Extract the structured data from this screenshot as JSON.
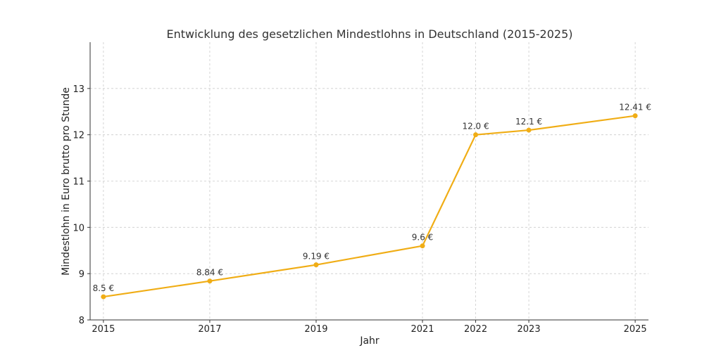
{
  "chart_data": {
    "type": "line",
    "title": "Entwicklung des gesetzlichen Mindestlohns in Deutschland (2015-2025)",
    "xlabel": "Jahr",
    "ylabel": "Mindestlohn in Euro brutto pro Stunde",
    "x": [
      2015,
      2017,
      2019,
      2021,
      2022,
      2023,
      2025
    ],
    "series": [
      {
        "values": [
          8.5,
          8.84,
          9.19,
          9.6,
          12.0,
          12.1,
          12.41
        ],
        "labels": [
          "8.5 €",
          "8.84 €",
          "9.19 €",
          "9.6 €",
          "12.0 €",
          "12.1 €",
          "12.41 €"
        ],
        "color": "#f0ad15"
      }
    ],
    "x_ticks": [
      "2015",
      "2017",
      "2019",
      "2021",
      "2022",
      "2023",
      "2025"
    ],
    "y_ticks": [
      "8",
      "9",
      "10",
      "11",
      "12",
      "13"
    ],
    "xlim": [
      2014.75,
      2025.25
    ],
    "ylim": [
      8,
      14
    ],
    "grid": true,
    "legend": "none"
  }
}
